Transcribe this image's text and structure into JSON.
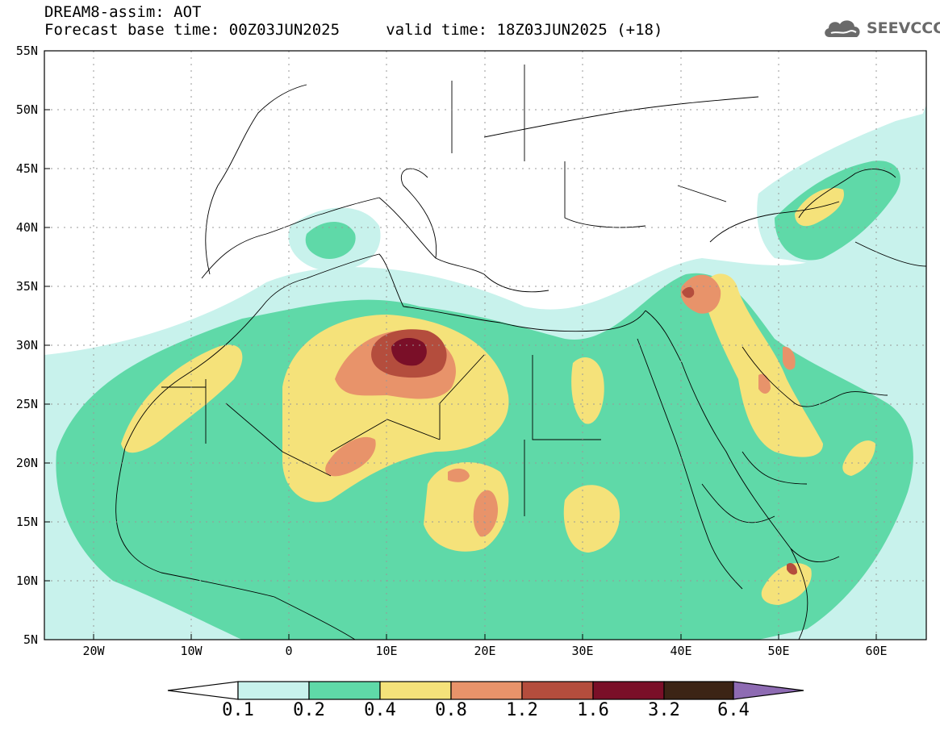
{
  "header": {
    "line1": "DREAM8-assim: AOT",
    "line2": "Forecast base time: 00Z03JUN2025     valid time: 18Z03JUN2025 (+18)",
    "logo_text": "SEEVCCC",
    "logo_icon": "cloud-icon"
  },
  "map": {
    "projection": "lat-lon",
    "lon_range": [
      -25,
      65
    ],
    "lat_range": [
      5,
      55
    ],
    "lat_labels": [
      "55N",
      "50N",
      "45N",
      "40N",
      "35N",
      "30N",
      "25N",
      "20N",
      "15N",
      "10N",
      "5N"
    ],
    "lon_labels": [
      "20W",
      "10W",
      "0",
      "10E",
      "20E",
      "30E",
      "40E",
      "50E",
      "60E"
    ],
    "grid": "dotted"
  },
  "colorbar": {
    "levels": [
      "0.1",
      "0.2",
      "0.4",
      "0.8",
      "1.2",
      "1.6",
      "3.2",
      "6.4"
    ],
    "colors": [
      "#ffffff",
      "#c8f2ec",
      "#5fd9a8",
      "#f5e27a",
      "#e8936a",
      "#b44d3d",
      "#7a0f28",
      "#3c2415",
      "#8e6bb3"
    ]
  }
}
